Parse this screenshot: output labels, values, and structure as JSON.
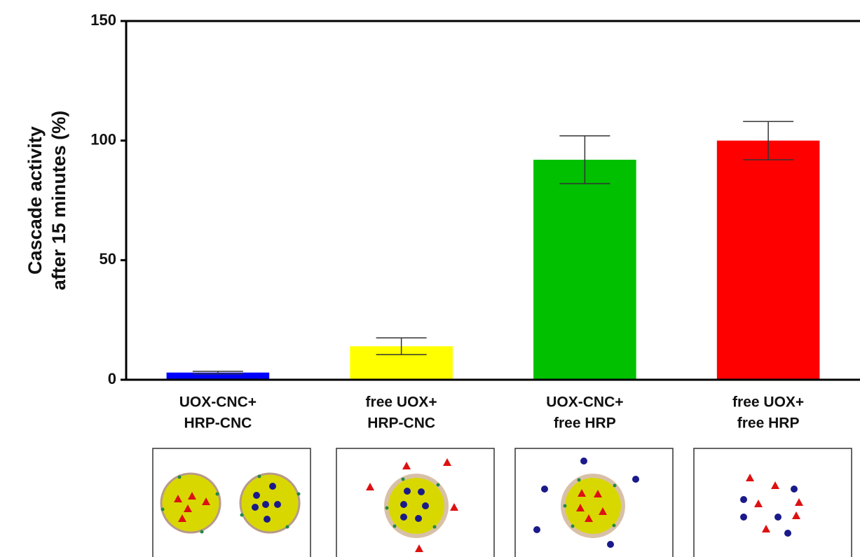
{
  "chart_data": {
    "type": "bar",
    "ylabel": [
      "Cascade activity",
      "after 15 minutes (%)"
    ],
    "categories": [
      [
        "UOX-CNC+",
        "HRP-CNC"
      ],
      [
        "free UOX+",
        "HRP-CNC"
      ],
      [
        "UOX-CNC+",
        "free HRP"
      ],
      [
        "free UOX+",
        "free HRP"
      ]
    ],
    "values": [
      3,
      14,
      92,
      100
    ],
    "errors": [
      0.5,
      3.5,
      10,
      8
    ],
    "colors": [
      "#0000ff",
      "#ffff00",
      "#00c000",
      "#ff0000"
    ],
    "ylim": [
      0,
      150
    ],
    "yticks": [
      0,
      50,
      100,
      150
    ]
  }
}
